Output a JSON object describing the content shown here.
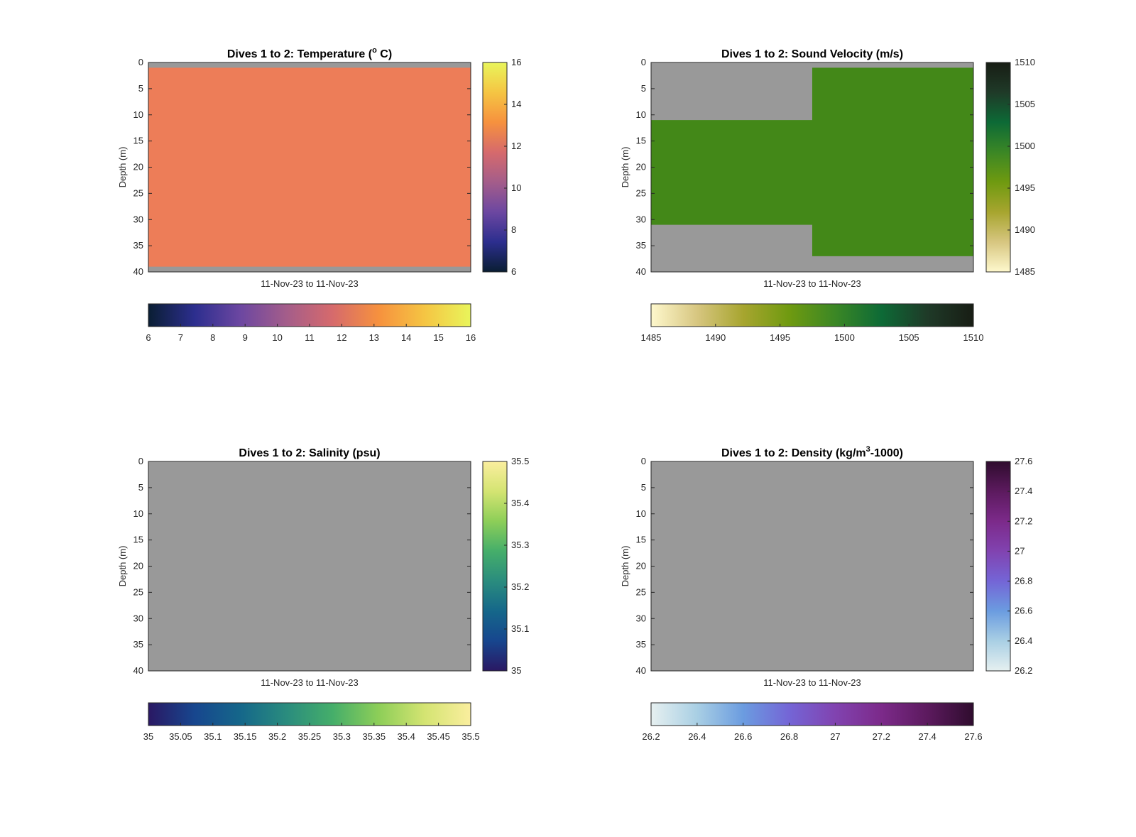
{
  "chart_data": [
    {
      "type": "heatmap",
      "title": "Dives 1 to 2: Temperature (",
      "title_sup": "o",
      "title_post": " C)",
      "xlabel": "11-Nov-23 to 11-Nov-23",
      "ylabel": "Depth (m)",
      "ylim": [
        0,
        40
      ],
      "yticks": [
        "0",
        "5",
        "10",
        "15",
        "20",
        "25",
        "30",
        "35",
        "40"
      ],
      "background": "#999999",
      "fill_color": "#ED7D58",
      "cells": [
        {
          "x": [
            0,
            1
          ],
          "depth": [
            1,
            39
          ]
        }
      ],
      "colorbar": {
        "range": [
          6,
          16
        ],
        "vticks": [
          "6",
          "8",
          "10",
          "12",
          "14",
          "16"
        ],
        "hticks": [
          "6",
          "7",
          "8",
          "9",
          "10",
          "11",
          "12",
          "13",
          "14",
          "15",
          "16"
        ],
        "colors": [
          "#0A1E33",
          "#2C2E8E",
          "#6C47A1",
          "#A45D8A",
          "#D66A6C",
          "#F6913E",
          "#F5C543",
          "#E9F55B"
        ]
      }
    },
    {
      "type": "heatmap",
      "title": "Dives 1 to 2: Sound Velocity (m/s)",
      "title_sup": "",
      "title_post": "",
      "xlabel": "11-Nov-23 to 11-Nov-23",
      "ylabel": "Depth (m)",
      "ylim": [
        0,
        40
      ],
      "yticks": [
        "0",
        "5",
        "10",
        "15",
        "20",
        "25",
        "30",
        "35",
        "40"
      ],
      "background": "#999999",
      "fill_color": "#438818",
      "cells": [
        {
          "x": [
            0,
            0.5
          ],
          "depth": [
            11,
            31
          ]
        },
        {
          "x": [
            0.5,
            1
          ],
          "depth": [
            1,
            37
          ]
        }
      ],
      "colorbar": {
        "range": [
          1485,
          1510
        ],
        "vticks": [
          "1485",
          "1490",
          "1495",
          "1500",
          "1505",
          "1510"
        ],
        "hticks": [
          "1485",
          "1490",
          "1495",
          "1500",
          "1505",
          "1510"
        ],
        "colors": [
          "#FEF8CD",
          "#D7C680",
          "#A7A52F",
          "#6F9A10",
          "#3B8725",
          "#0D6A36",
          "#1F3A28",
          "#181D14"
        ]
      }
    },
    {
      "type": "heatmap",
      "title": "Dives 1 to 2: Salinity (psu)",
      "title_sup": "",
      "title_post": "",
      "xlabel": "11-Nov-23 to 11-Nov-23",
      "ylabel": "Depth (m)",
      "ylim": [
        0,
        40
      ],
      "yticks": [
        "0",
        "5",
        "10",
        "15",
        "20",
        "25",
        "30",
        "35",
        "40"
      ],
      "background": "#999999",
      "fill_color": "",
      "cells": [],
      "colorbar": {
        "range": [
          35,
          35.5
        ],
        "vticks": [
          "35",
          "35.1",
          "35.2",
          "35.3",
          "35.4",
          "35.5"
        ],
        "hticks": [
          "35",
          "35.05",
          "35.1",
          "35.15",
          "35.2",
          "35.25",
          "35.3",
          "35.35",
          "35.4",
          "35.45",
          "35.5"
        ],
        "colors": [
          "#2A1863",
          "#17468E",
          "#15678A",
          "#2A8C7E",
          "#45AE6A",
          "#8DCE58",
          "#D4E472",
          "#FAEE9E"
        ]
      }
    },
    {
      "type": "heatmap",
      "title": "Dives 1 to 2: Density (kg/m",
      "title_sup": "3",
      "title_post": "-1000)",
      "xlabel": "11-Nov-23 to 11-Nov-23",
      "ylabel": "Depth (m)",
      "ylim": [
        0,
        40
      ],
      "yticks": [
        "0",
        "5",
        "10",
        "15",
        "20",
        "25",
        "30",
        "35",
        "40"
      ],
      "background": "#999999",
      "fill_color": "",
      "cells": [],
      "colorbar": {
        "range": [
          26.2,
          27.6
        ],
        "vticks": [
          "26.2",
          "26.4",
          "26.6",
          "26.8",
          "27",
          "27.2",
          "27.4",
          "27.6"
        ],
        "hticks": [
          "26.2",
          "26.4",
          "26.6",
          "26.8",
          "27",
          "27.2",
          "27.4",
          "27.6"
        ],
        "colors": [
          "#E6F0F0",
          "#A9CFE4",
          "#6B9CE0",
          "#7465D6",
          "#8143B0",
          "#7C2A8A",
          "#5C1A5E",
          "#2F0C2E"
        ]
      }
    }
  ]
}
